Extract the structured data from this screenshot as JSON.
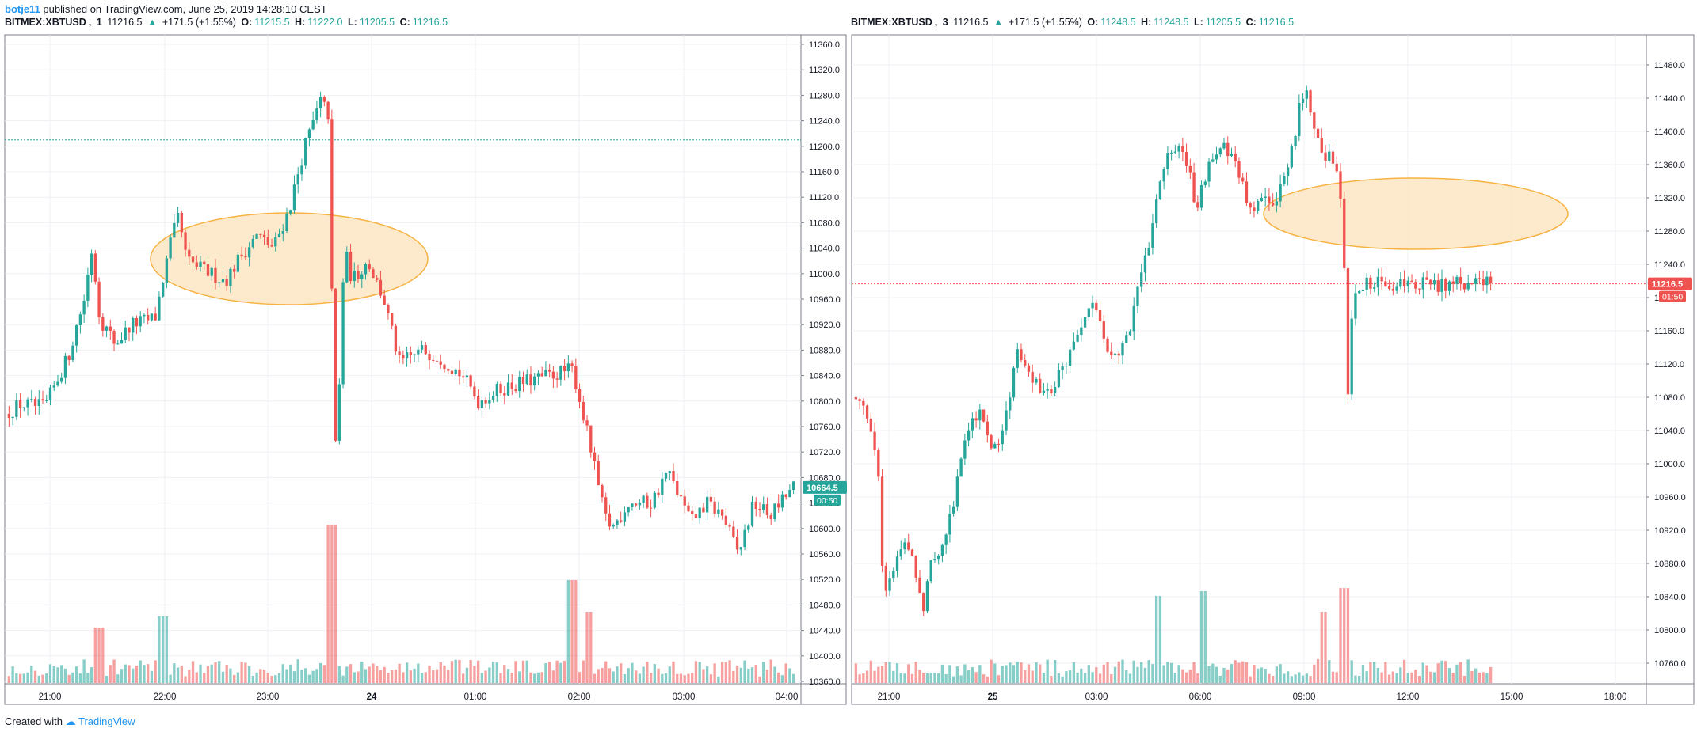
{
  "header": {
    "user": "botje11",
    "published_text": "published on TradingView.com, June 25, 2019 14:28:10 CEST"
  },
  "footer": {
    "created_with": "Created with",
    "brand": "TradingView"
  },
  "colors": {
    "up": "#26a69a",
    "down": "#ef5350",
    "grid": "#eef1f5",
    "ellipse_fill": "#fde7c4",
    "ellipse_stroke": "#f5a623",
    "border": "#7b7f8a"
  },
  "panels": [
    {
      "id": "left",
      "symbol": "BITMEX:XBTUSD",
      "interval": "1",
      "price": "11216.5",
      "change": "+171.5 (+1.55%)",
      "ohlc": {
        "O": "11215.5",
        "H": "11222.0",
        "L": "11205.5",
        "C": "11216.5"
      },
      "price_labels": [
        "11360.0",
        "11320.0",
        "11280.0",
        "11240.0",
        "11200.0",
        "11160.0",
        "11120.0",
        "11080.0",
        "11040.0",
        "11000.0",
        "10960.0",
        "10920.0",
        "10880.0",
        "10840.0",
        "10800.0",
        "10760.0",
        "10720.0",
        "10680.0",
        "10640.0",
        "10600.0",
        "10560.0",
        "10520.0",
        "10480.0",
        "10440.0",
        "10400.0",
        "10360.0"
      ],
      "time_labels": [
        "21:00",
        "22:00",
        "23:00",
        "24",
        "01:00",
        "02:00",
        "03:00",
        "04:00"
      ],
      "last_price_label": "10664.5",
      "countdown_label": "00:50",
      "last_price_color": "#26a69a",
      "hline_price": 11210
    },
    {
      "id": "right",
      "symbol": "BITMEX:XBTUSD",
      "interval": "3",
      "price": "11216.5",
      "change": "+171.5 (+1.55%)",
      "ohlc": {
        "O": "11248.5",
        "H": "11248.5",
        "L": "11205.5",
        "C": "11216.5"
      },
      "price_labels": [
        "11480.0",
        "11440.0",
        "11400.0",
        "11360.0",
        "11320.0",
        "11280.0",
        "11240.0",
        "11200.0",
        "11160.0",
        "11120.0",
        "11080.0",
        "11040.0",
        "11000.0",
        "10960.0",
        "10920.0",
        "10880.0",
        "10840.0",
        "10800.0",
        "10760.0"
      ],
      "time_labels": [
        "21:00",
        "25",
        "03:00",
        "06:00",
        "09:00",
        "12:00",
        "15:00",
        "18:00"
      ],
      "last_price_label": "11216.5",
      "countdown_label": "01:50",
      "last_price_color": "#ef5350",
      "hline_price": 11216.5
    }
  ],
  "chart_data": [
    {
      "type": "candlestick",
      "panel": "left",
      "ylim": [
        10350,
        11380
      ],
      "xlabel": "",
      "ylabel": "",
      "price_path": [
        [
          0,
          10780
        ],
        [
          0.02,
          10795
        ],
        [
          0.05,
          10790
        ],
        [
          0.08,
          10870
        ],
        [
          0.1,
          10960
        ],
        [
          0.11,
          11040
        ],
        [
          0.12,
          10930
        ],
        [
          0.14,
          10890
        ],
        [
          0.16,
          10920
        ],
        [
          0.19,
          10930
        ],
        [
          0.21,
          11050
        ],
        [
          0.22,
          11090
        ],
        [
          0.23,
          11020
        ],
        [
          0.26,
          11000
        ],
        [
          0.28,
          10990
        ],
        [
          0.3,
          11030
        ],
        [
          0.32,
          11060
        ],
        [
          0.34,
          11040
        ],
        [
          0.36,
          11100
        ],
        [
          0.38,
          11200
        ],
        [
          0.4,
          11270
        ],
        [
          0.41,
          11250
        ],
        [
          0.415,
          10920
        ],
        [
          0.42,
          10690
        ],
        [
          0.43,
          11040
        ],
        [
          0.44,
          10990
        ],
        [
          0.46,
          11020
        ],
        [
          0.48,
          10960
        ],
        [
          0.5,
          10860
        ],
        [
          0.53,
          10880
        ],
        [
          0.55,
          10870
        ],
        [
          0.58,
          10840
        ],
        [
          0.6,
          10800
        ],
        [
          0.63,
          10820
        ],
        [
          0.66,
          10830
        ],
        [
          0.69,
          10840
        ],
        [
          0.72,
          10850
        ],
        [
          0.74,
          10740
        ],
        [
          0.76,
          10620
        ],
        [
          0.77,
          10600
        ],
        [
          0.79,
          10640
        ],
        [
          0.82,
          10640
        ],
        [
          0.84,
          10690
        ],
        [
          0.87,
          10610
        ],
        [
          0.89,
          10640
        ],
        [
          0.91,
          10620
        ],
        [
          0.93,
          10560
        ],
        [
          0.95,
          10640
        ],
        [
          0.97,
          10620
        ],
        [
          1,
          10665
        ]
      ],
      "volume_spikes": [
        [
          0.415,
          1.0
        ],
        [
          0.74,
          0.45
        ],
        [
          0.72,
          0.65
        ],
        [
          0.2,
          0.42
        ],
        [
          0.12,
          0.35
        ]
      ]
    },
    {
      "type": "candlestick",
      "panel": "right",
      "ylim": [
        10730,
        11520
      ],
      "xlabel": "",
      "ylabel": "",
      "price_path": [
        [
          0,
          11080
        ],
        [
          0.02,
          11070
        ],
        [
          0.04,
          11010
        ],
        [
          0.05,
          10830
        ],
        [
          0.06,
          10860
        ],
        [
          0.08,
          10910
        ],
        [
          0.1,
          10870
        ],
        [
          0.11,
          10820
        ],
        [
          0.12,
          10880
        ],
        [
          0.14,
          10900
        ],
        [
          0.16,
          10960
        ],
        [
          0.18,
          11040
        ],
        [
          0.2,
          11070
        ],
        [
          0.22,
          11010
        ],
        [
          0.24,
          11050
        ],
        [
          0.26,
          11140
        ],
        [
          0.28,
          11110
        ],
        [
          0.3,
          11080
        ],
        [
          0.32,
          11100
        ],
        [
          0.34,
          11130
        ],
        [
          0.36,
          11170
        ],
        [
          0.38,
          11190
        ],
        [
          0.4,
          11140
        ],
        [
          0.42,
          11130
        ],
        [
          0.44,
          11180
        ],
        [
          0.46,
          11250
        ],
        [
          0.48,
          11330
        ],
        [
          0.5,
          11380
        ],
        [
          0.52,
          11370
        ],
        [
          0.54,
          11310
        ],
        [
          0.56,
          11370
        ],
        [
          0.58,
          11380
        ],
        [
          0.6,
          11360
        ],
        [
          0.62,
          11310
        ],
        [
          0.64,
          11310
        ],
        [
          0.66,
          11320
        ],
        [
          0.68,
          11340
        ],
        [
          0.7,
          11430
        ],
        [
          0.71,
          11450
        ],
        [
          0.72,
          11420
        ],
        [
          0.73,
          11390
        ],
        [
          0.74,
          11360
        ],
        [
          0.75,
          11370
        ],
        [
          0.76,
          11360
        ],
        [
          0.77,
          11260
        ],
        [
          0.775,
          11060
        ],
        [
          0.78,
          11170
        ],
        [
          0.79,
          11216
        ]
      ],
      "volume_spikes": [
        [
          0.775,
          1.0
        ],
        [
          0.77,
          0.6
        ],
        [
          0.48,
          0.55
        ],
        [
          0.55,
          0.58
        ],
        [
          0.74,
          0.45
        ]
      ]
    }
  ]
}
